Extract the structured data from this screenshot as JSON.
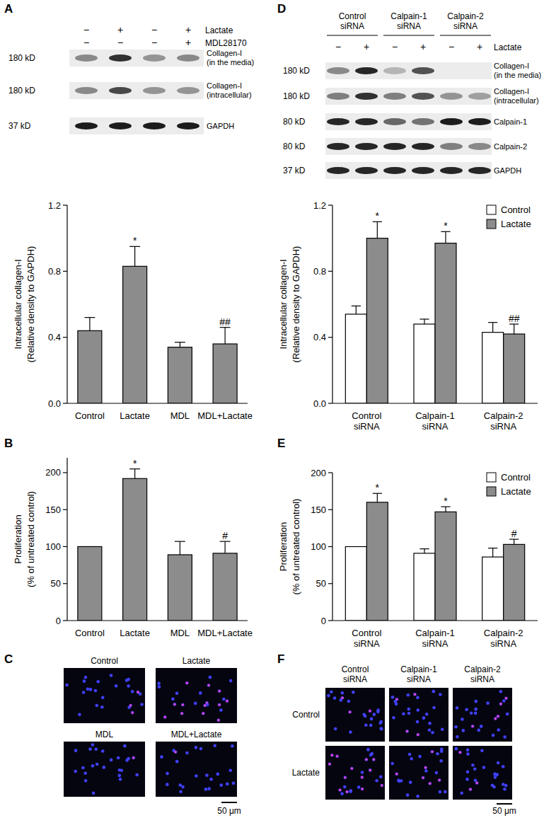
{
  "panel_labels": [
    "A",
    "B",
    "C",
    "D",
    "E",
    "F"
  ],
  "chart_data": [
    {
      "type": "bar",
      "categories": [
        "Control",
        "Lactate",
        "MDL",
        "MDL+Lactate"
      ],
      "values": [
        0.44,
        0.83,
        0.34,
        0.36
      ],
      "errors": [
        0.08,
        0.12,
        0.03,
        0.1
      ],
      "significance": [
        null,
        "*",
        null,
        "##"
      ],
      "color": "#8c8c8c",
      "y_label": [
        "Intracellular collagen-I",
        "(Relative density to GAPDH)"
      ],
      "ylim": [
        0,
        1.2
      ],
      "yticks": [
        {
          "value": 0,
          "label": "0.0"
        },
        {
          "value": 0.4,
          "label": "0.4"
        },
        {
          "value": 0.8,
          "label": "0.8"
        },
        {
          "value": 1.2,
          "label": "1.2"
        }
      ],
      "grid": false
    },
    {
      "type": "bar",
      "categories": [
        "Control",
        "Lactate",
        "MDL",
        "MDL+Lactate"
      ],
      "values": [
        100,
        192,
        89,
        91
      ],
      "errors": [
        null,
        13,
        18,
        16
      ],
      "significance": [
        null,
        "*",
        null,
        "#"
      ],
      "color": "#8c8c8c",
      "y_label": [
        "Proliferation",
        "(% of untreated control)"
      ],
      "ylim": [
        0,
        220
      ],
      "yticks": [
        0,
        50,
        100,
        150,
        200
      ],
      "grid": false
    },
    {
      "type": "bar",
      "categories": [
        "Control siRNA",
        "Calpain-1 siRNA",
        "Calpain-2 siRNA"
      ],
      "series": [
        {
          "name": "Control",
          "color": "#ffffff",
          "values": [
            0.54,
            0.48,
            0.43
          ],
          "errors": [
            0.05,
            0.03,
            0.06
          ]
        },
        {
          "name": "Lactate",
          "color": "#8c8c8c",
          "values": [
            1.0,
            0.97,
            0.42
          ],
          "errors": [
            0.1,
            0.07,
            0.06
          ],
          "significance": [
            "*",
            "*",
            "##"
          ]
        }
      ],
      "legend": "upper right",
      "y_label": [
        "Intracellular collagen-I",
        "(Relative density to GAPDH)"
      ],
      "ylim": [
        0,
        1.2
      ],
      "yticks": [
        {
          "value": 0,
          "label": "0.0"
        },
        {
          "value": 0.4,
          "label": "0.4"
        },
        {
          "value": 0.8,
          "label": "0.8"
        },
        {
          "value": 1.2,
          "label": "1.2"
        }
      ],
      "grid": false
    },
    {
      "type": "bar",
      "categories": [
        "Control siRNA",
        "Calpain-1 siRNA",
        "Calpain-2 siRNA"
      ],
      "series": [
        {
          "name": "Control",
          "color": "#ffffff",
          "values": [
            100,
            91,
            86
          ],
          "errors": [
            null,
            6,
            12
          ]
        },
        {
          "name": "Lactate",
          "color": "#8c8c8c",
          "values": [
            160,
            147,
            103
          ],
          "errors": [
            12,
            7,
            7
          ],
          "significance": [
            "*",
            "*",
            "#"
          ]
        }
      ],
      "legend": "upper right",
      "y_label": [
        "Proliferation",
        "(% of untreated control)"
      ],
      "ylim": [
        0,
        200
      ],
      "yticks": [
        0,
        50,
        100,
        150,
        200
      ],
      "grid": false
    }
  ],
  "blots": [
    {
      "lane_rows": [
        {
          "label": "Lactate",
          "values": [
            "−",
            "+",
            "−",
            "+"
          ]
        },
        {
          "label": "MDL28170",
          "values": [
            "−",
            "−",
            "−",
            "+"
          ]
        }
      ],
      "bands": [
        {
          "kd": "180 kD",
          "label": [
            "Collagen-I",
            "(in the media)"
          ],
          "intensity": [
            0.45,
            0.85,
            0.4,
            0.45
          ]
        },
        {
          "kd": "180 kD",
          "label": [
            "Collagen-I",
            "(intracellular)"
          ],
          "intensity": [
            0.45,
            0.75,
            0.4,
            0.4
          ]
        },
        {
          "kd": "37 kD",
          "label": [
            "GAPDH"
          ],
          "intensity": [
            0.95,
            0.95,
            0.95,
            0.95
          ]
        }
      ]
    },
    {
      "groups": [
        "Control siRNA",
        "Calpain-1 siRNA",
        "Calpain-2 siRNA"
      ],
      "lane_rows": [
        {
          "label": "Lactate",
          "values": [
            "−",
            "+",
            "−",
            "+",
            "−",
            "+"
          ]
        }
      ],
      "bands": [
        {
          "kd": "180 kD",
          "label": [
            "Collagen-I",
            "(in the media)"
          ],
          "intensity": [
            0.45,
            0.9,
            0.25,
            0.7,
            0,
            0
          ]
        },
        {
          "kd": "180 kD",
          "label": [
            "Collagen-I",
            "(intracellular)"
          ],
          "intensity": [
            0.5,
            0.85,
            0.5,
            0.7,
            0.4,
            0.35
          ]
        },
        {
          "kd": "80 kD",
          "label": [
            "Calpain-1"
          ],
          "intensity": [
            0.9,
            0.9,
            0.6,
            0.55,
            0.95,
            0.95
          ]
        },
        {
          "kd": "80 kD",
          "label": [
            "Calpain-2"
          ],
          "intensity": [
            0.9,
            0.9,
            0.9,
            0.9,
            0.5,
            0.45
          ]
        },
        {
          "kd": "37 kD",
          "label": [
            "GAPDH"
          ],
          "intensity": [
            0.9,
            0.9,
            0.9,
            0.9,
            0.9,
            0.9
          ]
        }
      ]
    }
  ],
  "micrographs": [
    {
      "image_labels": [
        "Control",
        "Lactate",
        "MDL",
        "MDL+Lactate"
      ],
      "scale_bar": "50 μm"
    },
    {
      "column_labels": [
        "Control siRNA",
        "Calpain-1 siRNA",
        "Calpain-2 siRNA"
      ],
      "row_labels": [
        "Control",
        "Lactate"
      ],
      "scale_bar": "50 μm"
    }
  ]
}
